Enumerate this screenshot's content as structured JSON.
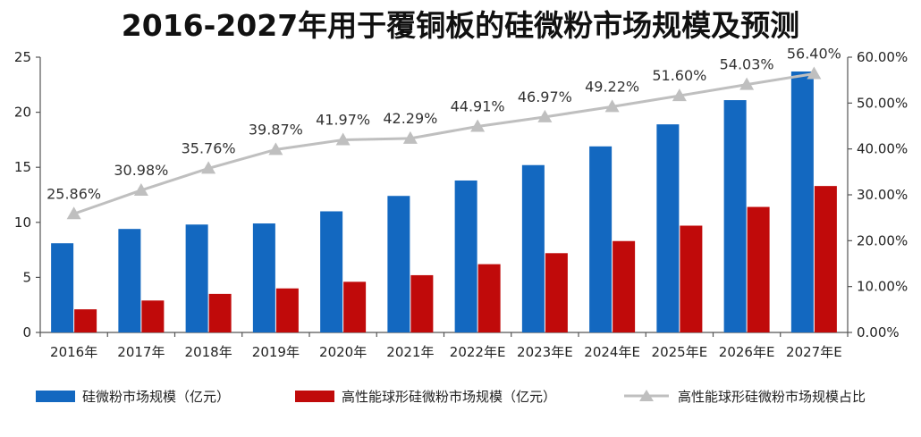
{
  "chart_data": {
    "type": "bar+line",
    "title": "2016-2027年用于覆铜板的硅微粉市场规模及预测",
    "categories": [
      "2016年",
      "2017年",
      "2018年",
      "2019年",
      "2020年",
      "2021年",
      "2022年E",
      "2023年E",
      "2024年E",
      "2025年E",
      "2026年E",
      "2027年E"
    ],
    "y_left": {
      "min": 0,
      "max": 25,
      "ticks": [
        "0",
        "5",
        "10",
        "15",
        "20",
        "25"
      ],
      "tick_values": [
        0,
        5,
        10,
        15,
        20,
        25
      ]
    },
    "y_right": {
      "min": 0,
      "max": 60,
      "ticks": [
        "0.00%",
        "10.00%",
        "20.00%",
        "30.00%",
        "40.00%",
        "50.00%",
        "60.00%"
      ],
      "tick_values": [
        0,
        10,
        20,
        30,
        40,
        50,
        60
      ]
    },
    "series": [
      {
        "name": "硅微粉市场规模（亿元）",
        "type": "bar",
        "axis": "left",
        "color": "#1368c0",
        "values": [
          8.1,
          9.4,
          9.8,
          9.9,
          11.0,
          12.4,
          13.8,
          15.2,
          16.9,
          18.9,
          21.1,
          23.7
        ]
      },
      {
        "name": "高性能球形硅微粉市场规模（亿元）",
        "type": "bar",
        "axis": "left",
        "color": "#c00a0a",
        "values": [
          2.1,
          2.9,
          3.5,
          4.0,
          4.6,
          5.2,
          6.2,
          7.2,
          8.3,
          9.7,
          11.4,
          13.3
        ]
      },
      {
        "name": "高性能球形硅微粉市场规模占比",
        "type": "line",
        "axis": "right",
        "color": "#bfbfbf",
        "values": [
          25.86,
          30.98,
          35.76,
          39.87,
          41.97,
          42.29,
          44.91,
          46.97,
          49.22,
          51.6,
          54.03,
          56.4
        ],
        "labels": [
          "25.86%",
          "30.98%",
          "35.76%",
          "39.87%",
          "41.97%",
          "42.29%",
          "44.91%",
          "46.97%",
          "49.22%",
          "51.60%",
          "54.03%",
          "56.40%"
        ]
      }
    ]
  }
}
